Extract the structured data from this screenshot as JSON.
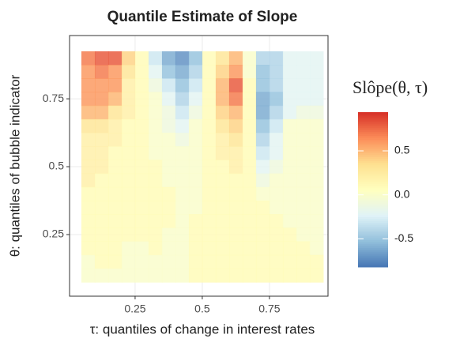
{
  "chart_data": {
    "type": "heatmap",
    "title": "Quantile Estimate of Slope",
    "x_label": "τ: quantiles of change in interest rates",
    "y_label": "θ: quantiles of bubble indicator",
    "legend_title": "Slôpe(θ, τ)",
    "xlim": [
      0.006,
      0.968
    ],
    "xticks": [
      0.25,
      0.5,
      0.75
    ],
    "ylim": [
      0.023,
      0.983
    ],
    "yticks": [
      0.25,
      0.5,
      0.75
    ],
    "zlim": [
      -0.82,
      0.94
    ],
    "zticks": [
      0.5,
      {
        "value": 0,
        "label": "0.0"
      },
      -0.5
    ],
    "colormap": [
      "#4575b4",
      "#91bfdb",
      "#e0f3f8",
      "#ffffbf",
      "#fee090",
      "#fc8d59",
      "#d73027"
    ],
    "alpha": 0.85,
    "grid": true,
    "x": [
      0.075,
      0.125,
      0.175,
      0.225,
      0.275,
      0.325,
      0.375,
      0.425,
      0.475,
      0.525,
      0.575,
      0.625,
      0.675,
      0.725,
      0.775,
      0.825,
      0.875,
      0.925
    ],
    "y": [
      0.9,
      0.85,
      0.8,
      0.75,
      0.7,
      0.65,
      0.6,
      0.55,
      0.5,
      0.45,
      0.4,
      0.35,
      0.3,
      0.25,
      0.2,
      0.15,
      0.1
    ],
    "z": [
      [
        0.7,
        0.8,
        0.8,
        0.4,
        0.1,
        -0.3,
        -0.6,
        -0.7,
        -0.5,
        0.1,
        0.3,
        0.5,
        0.0,
        -0.4,
        -0.4,
        -0.2,
        -0.2,
        -0.2
      ],
      [
        0.6,
        0.7,
        0.6,
        0.3,
        0.1,
        -0.2,
        -0.5,
        -0.6,
        -0.4,
        0.1,
        0.4,
        0.6,
        0.0,
        -0.5,
        -0.4,
        -0.2,
        -0.2,
        -0.2
      ],
      [
        0.6,
        0.6,
        0.6,
        0.2,
        0.1,
        -0.1,
        -0.3,
        -0.5,
        -0.3,
        0.1,
        0.5,
        0.8,
        0.1,
        -0.5,
        -0.4,
        -0.2,
        -0.2,
        -0.2
      ],
      [
        0.6,
        0.6,
        0.5,
        0.2,
        0.1,
        0.0,
        -0.2,
        -0.4,
        -0.2,
        0.1,
        0.5,
        0.7,
        0.1,
        -0.6,
        -0.5,
        -0.2,
        -0.2,
        -0.2
      ],
      [
        0.5,
        0.5,
        0.3,
        0.2,
        0.1,
        0.0,
        -0.1,
        -0.3,
        -0.1,
        0.1,
        0.4,
        0.5,
        0.1,
        -0.6,
        -0.4,
        -0.2,
        -0.1,
        -0.1
      ],
      [
        0.3,
        0.3,
        0.2,
        0.1,
        0.1,
        0.0,
        -0.1,
        -0.2,
        0.0,
        0.1,
        0.3,
        0.4,
        0.1,
        -0.5,
        -0.3,
        0.0,
        0.0,
        0.0
      ],
      [
        0.2,
        0.2,
        0.2,
        0.1,
        0.1,
        0.0,
        0.0,
        -0.1,
        0.0,
        0.1,
        0.2,
        0.3,
        0.1,
        -0.4,
        -0.2,
        0.0,
        0.0,
        0.0
      ],
      [
        0.2,
        0.2,
        0.1,
        0.1,
        0.1,
        0.0,
        0.0,
        0.0,
        0.0,
        0.1,
        0.2,
        0.2,
        0.1,
        -0.3,
        -0.2,
        0.0,
        0.0,
        0.0
      ],
      [
        0.2,
        0.2,
        0.1,
        0.1,
        0.1,
        0.1,
        0.0,
        0.0,
        0.0,
        0.1,
        0.1,
        0.2,
        0.1,
        -0.2,
        -0.1,
        0.0,
        0.0,
        0.0
      ],
      [
        0.2,
        0.1,
        0.1,
        0.1,
        0.1,
        0.1,
        0.0,
        0.0,
        0.0,
        0.1,
        0.1,
        0.1,
        0.1,
        -0.1,
        0.0,
        0.0,
        0.0,
        0.0
      ],
      [
        0.1,
        0.1,
        0.1,
        0.1,
        0.1,
        0.1,
        0.1,
        0.0,
        0.0,
        0.1,
        0.1,
        0.1,
        0.1,
        0.0,
        0.0,
        0.0,
        0.0,
        0.0
      ],
      [
        0.1,
        0.1,
        0.1,
        0.1,
        0.1,
        0.1,
        0.1,
        0.0,
        0.0,
        0.1,
        0.1,
        0.1,
        0.1,
        0.1,
        0.0,
        0.0,
        0.0,
        0.0
      ],
      [
        0.1,
        0.1,
        0.1,
        0.1,
        0.1,
        0.1,
        0.1,
        0.0,
        0.1,
        0.1,
        0.1,
        0.1,
        0.1,
        0.1,
        0.1,
        0.0,
        0.0,
        0.0
      ],
      [
        0.1,
        0.1,
        0.1,
        0.1,
        0.1,
        0.1,
        0.0,
        0.0,
        0.1,
        0.1,
        0.1,
        0.1,
        0.1,
        0.1,
        0.1,
        0.1,
        0.0,
        0.0
      ],
      [
        0.1,
        0.1,
        0.1,
        0.0,
        0.0,
        0.1,
        0.0,
        0.0,
        0.1,
        0.1,
        0.1,
        0.1,
        0.1,
        0.1,
        0.1,
        0.1,
        0.1,
        0.0
      ],
      [
        0.0,
        0.1,
        0.1,
        0.0,
        0.0,
        0.0,
        0.0,
        0.0,
        0.1,
        0.1,
        0.1,
        0.1,
        0.1,
        0.1,
        0.1,
        0.1,
        0.1,
        0.1
      ],
      [
        0.0,
        0.0,
        0.0,
        0.0,
        0.0,
        0.0,
        0.0,
        0.0,
        0.1,
        0.1,
        0.1,
        0.1,
        0.1,
        0.1,
        0.1,
        0.1,
        0.1,
        0.1
      ]
    ]
  }
}
